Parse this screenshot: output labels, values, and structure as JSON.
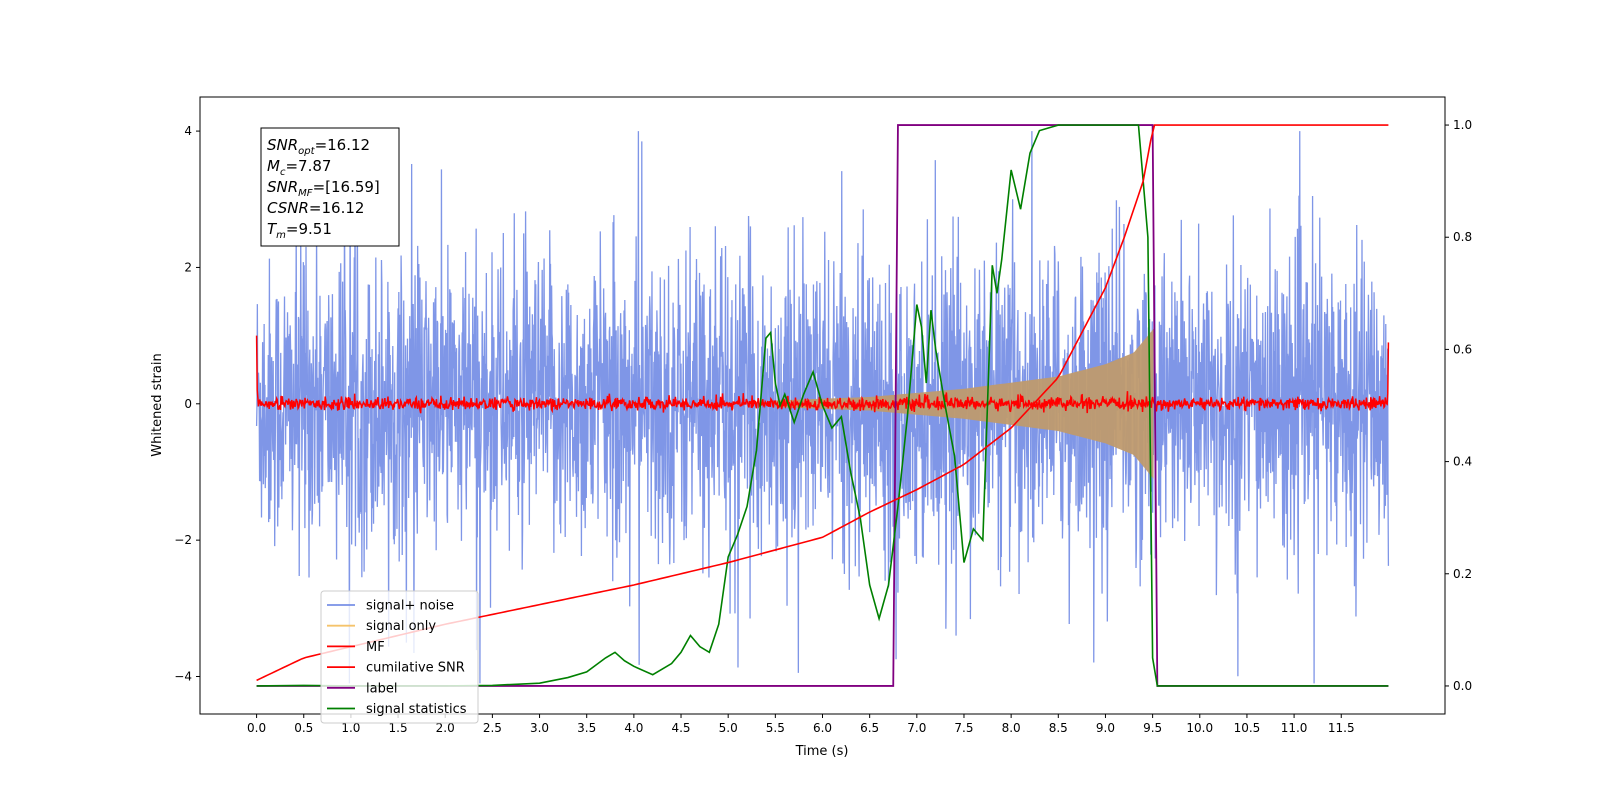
{
  "chart_data": {
    "type": "line",
    "xlabel": "Time (s)",
    "ylabel_left": "Whitened strain",
    "xlim": [
      -0.6,
      12.6
    ],
    "ylim_left": [
      -4.55,
      4.5
    ],
    "ylim_right": [
      -0.05,
      1.05
    ],
    "x_ticks": [
      "0.0",
      "0.5",
      "1.0",
      "1.5",
      "2.0",
      "2.5",
      "3.0",
      "3.5",
      "4.0",
      "4.5",
      "5.0",
      "5.5",
      "6.0",
      "6.5",
      "7.0",
      "7.5",
      "8.0",
      "8.5",
      "9.0",
      "9.5",
      "10.0",
      "10.5",
      "11.0",
      "11.5"
    ],
    "y_ticks_left": [
      "−4",
      "−2",
      "0",
      "2",
      "4"
    ],
    "y_ticks_right": [
      "0.0",
      "0.2",
      "0.4",
      "0.6",
      "0.8",
      "1.0"
    ],
    "grid": false,
    "legend_position": "lower-left",
    "legend": [
      {
        "label": "signal+ noise",
        "color": "#7890e6"
      },
      {
        "label": "signal only",
        "color": "#f5c36b"
      },
      {
        "label": "MF",
        "color": "#ff0000"
      },
      {
        "label": "cumilative SNR",
        "color": "#ff0000"
      },
      {
        "label": "label",
        "color": "#800080"
      },
      {
        "label": "signal statistics",
        "color": "#008000"
      }
    ],
    "annotation": [
      {
        "name": "SNR",
        "sub": "opt",
        "value": "=16.12"
      },
      {
        "name": "M",
        "sub": "c",
        "value": "=7.87"
      },
      {
        "name": "SNR",
        "sub": "MF",
        "value": "=[16.59]"
      },
      {
        "name": "CSNR",
        "sub": "",
        "value": "=16.12"
      },
      {
        "name": "T",
        "sub": "m",
        "value": "=9.51"
      }
    ],
    "series": [
      {
        "name": "signal+ noise",
        "axis": "left",
        "color": "#7890e6",
        "kind": "noise",
        "x_range": [
          0.0,
          12.0
        ],
        "abs_peak_approx": 4.0
      },
      {
        "name": "signal only",
        "axis": "left",
        "color": "#f5c36b",
        "kind": "chirp",
        "x_range": [
          5.5,
          9.51
        ],
        "envelope": {
          "x": [
            5.5,
            6.5,
            7.5,
            8.5,
            9.0,
            9.3,
            9.51
          ],
          "y": [
            0.05,
            0.1,
            0.22,
            0.4,
            0.58,
            0.75,
            1.1
          ]
        }
      },
      {
        "name": "MF",
        "axis": "left",
        "color": "#ff0000",
        "kind": "noise_small",
        "x_range": [
          0.0,
          12.0
        ],
        "abs_peak_approx": 0.2,
        "edge_values": [
          1.0,
          0.9
        ]
      },
      {
        "name": "cumilative SNR",
        "axis": "right",
        "x": [
          0.0,
          0.5,
          1.0,
          2.0,
          3.0,
          4.0,
          5.0,
          6.0,
          6.5,
          7.0,
          7.5,
          8.0,
          8.5,
          9.0,
          9.2,
          9.4,
          9.51,
          12.0
        ],
        "y": [
          0.01,
          0.05,
          0.07,
          0.11,
          0.145,
          0.18,
          0.22,
          0.265,
          0.31,
          0.35,
          0.395,
          0.46,
          0.55,
          0.71,
          0.8,
          0.9,
          1.0,
          1.0
        ]
      },
      {
        "name": "label",
        "axis": "right",
        "x": [
          0.0,
          6.75,
          6.8,
          9.5,
          9.55,
          12.0
        ],
        "y": [
          0.0,
          0.0,
          1.0,
          1.0,
          0.0,
          0.0
        ]
      },
      {
        "name": "signal statistics",
        "axis": "right",
        "x": [
          0.0,
          0.5,
          1.0,
          2.0,
          2.5,
          3.0,
          3.3,
          3.5,
          3.7,
          3.8,
          3.9,
          4.0,
          4.2,
          4.4,
          4.5,
          4.6,
          4.7,
          4.8,
          4.9,
          5.0,
          5.1,
          5.2,
          5.3,
          5.4,
          5.45,
          5.5,
          5.55,
          5.6,
          5.7,
          5.8,
          5.9,
          6.0,
          6.1,
          6.2,
          6.3,
          6.4,
          6.5,
          6.6,
          6.7,
          6.8,
          6.9,
          7.0,
          7.05,
          7.1,
          7.15,
          7.2,
          7.3,
          7.4,
          7.5,
          7.6,
          7.7,
          7.8,
          7.85,
          7.9,
          8.0,
          8.1,
          8.2,
          8.3,
          8.5,
          9.0,
          9.35,
          9.45,
          9.5,
          9.55,
          12.0
        ],
        "y": [
          0.0,
          0.001,
          0.0,
          0.0,
          0.001,
          0.005,
          0.015,
          0.025,
          0.05,
          0.06,
          0.045,
          0.035,
          0.02,
          0.04,
          0.06,
          0.09,
          0.07,
          0.06,
          0.11,
          0.23,
          0.27,
          0.32,
          0.42,
          0.62,
          0.63,
          0.54,
          0.5,
          0.52,
          0.47,
          0.52,
          0.56,
          0.5,
          0.46,
          0.48,
          0.38,
          0.3,
          0.18,
          0.12,
          0.18,
          0.32,
          0.48,
          0.68,
          0.64,
          0.54,
          0.67,
          0.6,
          0.5,
          0.41,
          0.22,
          0.28,
          0.26,
          0.75,
          0.7,
          0.76,
          0.92,
          0.85,
          0.95,
          0.99,
          1.0,
          1.0,
          1.0,
          0.8,
          0.05,
          0.0,
          0.0
        ]
      }
    ]
  }
}
